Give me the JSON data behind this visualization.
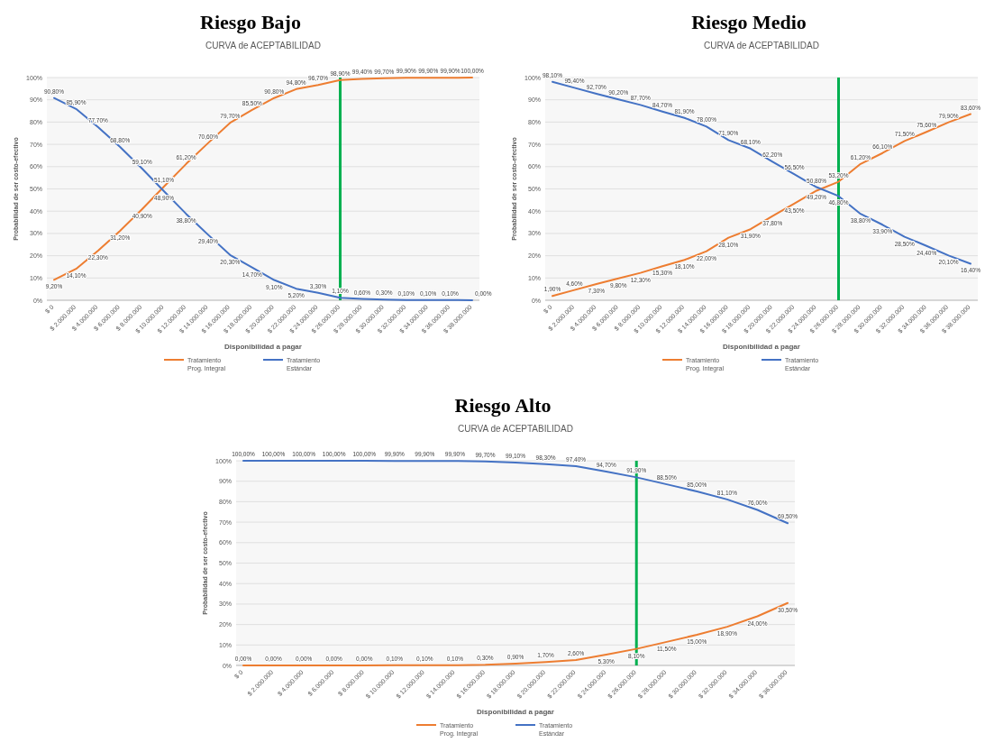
{
  "chart_data": [
    {
      "type": "line",
      "title": "Riesgo Bajo",
      "subtitle": "CURVA de ACEPTABILIDAD",
      "xlabel": "Disponibilidad a pagar",
      "ylabel": "Probabilidad de ser costo-efectivo",
      "categories": [
        "$ 0",
        "$ 2.000.000",
        "$ 4.000.000",
        "$ 6.000.000",
        "$ 8.000.000",
        "$ 10.000.000",
        "$ 12.000.000",
        "$ 14.000.000",
        "$ 16.000.000",
        "$ 18.000.000",
        "$ 20.000.000",
        "$ 22.000.000",
        "$ 24.000.000",
        "$ 26.000.000",
        "$ 28.000.000",
        "$ 30.000.000",
        "$ 32.000.000",
        "$ 34.000.000",
        "$ 36.000.000",
        "$ 38.000.000"
      ],
      "ylim": [
        0,
        100
      ],
      "yticks": [
        {
          "value": 0,
          "label": "0%"
        },
        {
          "value": 10,
          "label": "10%"
        },
        {
          "value": 20,
          "label": "20%"
        },
        {
          "value": 30,
          "label": "30%"
        },
        {
          "value": 40,
          "label": "40%"
        },
        {
          "value": 50,
          "label": "50%"
        },
        {
          "value": 60,
          "label": "60%"
        },
        {
          "value": 70,
          "label": "70%"
        },
        {
          "value": 80,
          "label": "80%"
        },
        {
          "value": 90,
          "label": "90%"
        },
        {
          "value": 100,
          "label": "100%"
        }
      ],
      "grid": "y",
      "legend": "bottom",
      "marker": "none",
      "ref_lines": [
        {
          "axis": "x",
          "value": "$ 26.000.000",
          "color": "#00b050"
        }
      ],
      "series": [
        {
          "name": "Tratamiento Prog. Integral",
          "color": "#ed7d31",
          "values": [
            9.2,
            14.1,
            22.3,
            31.2,
            40.9,
            51.1,
            61.2,
            70.6,
            79.7,
            85.5,
            90.8,
            94.8,
            96.7,
            98.9,
            99.4,
            99.7,
            99.9,
            99.9,
            99.9,
            100
          ],
          "value_labels": [
            "9,20%",
            "14,10%",
            "22,30%",
            "31,20%",
            "40,90%",
            "51,10%",
            "61,20%",
            "70,60%",
            "79,70%",
            "85,50%",
            "90,80%",
            "94,80%",
            "96,70%",
            "98,90%",
            "99,40%",
            "99,70%",
            "99,90%",
            "99,90%",
            "99,90%",
            "100,00%"
          ]
        },
        {
          "name": "Tratamiento Estándar",
          "color": "#4472c4",
          "values": [
            90.8,
            85.9,
            77.7,
            68.8,
            59.1,
            48.9,
            38.8,
            29.4,
            20.3,
            14.7,
            9.1,
            5.2,
            3.3,
            1.1,
            0.6,
            0.3,
            0.1,
            0.1,
            0.1,
            0
          ],
          "value_labels": [
            "90,80%",
            "85,90%",
            "77,70%",
            "68,80%",
            "59,10%",
            "48,90%",
            "38,80%",
            "29,40%",
            "20,30%",
            "14,70%",
            "9,10%",
            "5,20%",
            "3,30%",
            "1,10%",
            "0,60%",
            "0,30%",
            "0,10%",
            "0,10%",
            "0,10%",
            "0,00%"
          ]
        }
      ]
    },
    {
      "type": "line",
      "title": "Riesgo Medio",
      "subtitle": "CURVA de ACEPTABILIDAD",
      "xlabel": "Disponibilidad a pagar",
      "ylabel": "Probabilidad de ser costo-efectivo",
      "categories": [
        "$ 0",
        "$ 2.000.000",
        "$ 4.000.000",
        "$ 6.000.000",
        "$ 8.000.000",
        "$ 10.000.000",
        "$ 12.000.000",
        "$ 14.000.000",
        "$ 16.000.000",
        "$ 18.000.000",
        "$ 20.000.000",
        "$ 22.000.000",
        "$ 24.000.000",
        "$ 26.000.000",
        "$ 28.000.000",
        "$ 30.000.000",
        "$ 32.000.000",
        "$ 34.000.000",
        "$ 36.000.000",
        "$ 38.000.000"
      ],
      "ylim": [
        0,
        100
      ],
      "yticks": [
        {
          "value": 0,
          "label": "0%"
        },
        {
          "value": 10,
          "label": "10%"
        },
        {
          "value": 20,
          "label": "20%"
        },
        {
          "value": 30,
          "label": "30%"
        },
        {
          "value": 40,
          "label": "40%"
        },
        {
          "value": 50,
          "label": "50%"
        },
        {
          "value": 60,
          "label": "60%"
        },
        {
          "value": 70,
          "label": "70%"
        },
        {
          "value": 80,
          "label": "80%"
        },
        {
          "value": 90,
          "label": "90%"
        },
        {
          "value": 100,
          "label": "100%"
        }
      ],
      "grid": "y",
      "legend": "bottom",
      "marker": "none",
      "ref_lines": [
        {
          "axis": "x",
          "value": "$ 26.000.000",
          "color": "#00b050"
        }
      ],
      "series": [
        {
          "name": "Tratamiento Prog. Integral",
          "color": "#ed7d31",
          "values": [
            1.9,
            4.6,
            7.3,
            9.8,
            12.3,
            15.3,
            18.1,
            22,
            28.1,
            31.9,
            37.8,
            43.5,
            49.2,
            53.2,
            61.2,
            66.1,
            71.5,
            75.6,
            79.9,
            83.6
          ],
          "value_labels": [
            "1,90%",
            "4,60%",
            "7,30%",
            "9,80%",
            "12,30%",
            "15,30%",
            "18,10%",
            "22,00%",
            "28,10%",
            "31,90%",
            "37,80%",
            "43,50%",
            "49,20%",
            "53,20%",
            "61,20%",
            "66,10%",
            "71,50%",
            "75,60%",
            "79,90%",
            "83,60%"
          ]
        },
        {
          "name": "Tratamiento Estándar",
          "color": "#4472c4",
          "values": [
            98.1,
            95.4,
            92.7,
            90.2,
            87.7,
            84.7,
            81.9,
            78,
            71.9,
            68.1,
            62.2,
            56.5,
            50.8,
            46.8,
            38.8,
            33.9,
            28.5,
            24.4,
            20.1,
            16.4
          ],
          "value_labels": [
            "98,10%",
            "95,40%",
            "92,70%",
            "90,20%",
            "87,70%",
            "84,70%",
            "81,90%",
            "78,00%",
            "71,90%",
            "68,10%",
            "62,20%",
            "56,50%",
            "50,80%",
            "46,80%",
            "38,80%",
            "33,90%",
            "28,50%",
            "24,40%",
            "20,10%",
            "16,40%"
          ]
        }
      ]
    },
    {
      "type": "line",
      "title": "Riesgo Alto",
      "subtitle": "CURVA de ACEPTABILIDAD",
      "xlabel": "Disponibilidad a pagar",
      "ylabel": "Probabilidad de ser costo-efectivo",
      "categories": [
        "$ 0",
        "$ 2.000.000",
        "$ 4.000.000",
        "$ 6.000.000",
        "$ 8.000.000",
        "$ 10.000.000",
        "$ 12.000.000",
        "$ 14.000.000",
        "$ 16.000.000",
        "$ 18.000.000",
        "$ 20.000.000",
        "$ 22.000.000",
        "$ 24.000.000",
        "$ 26.000.000",
        "$ 28.000.000",
        "$ 30.000.000",
        "$ 32.000.000",
        "$ 34.000.000",
        "$ 36.000.000"
      ],
      "ylim": [
        0,
        100
      ],
      "yticks": [
        {
          "value": 0,
          "label": "0%"
        },
        {
          "value": 10,
          "label": "10%"
        },
        {
          "value": 20,
          "label": "20%"
        },
        {
          "value": 30,
          "label": "30%"
        },
        {
          "value": 40,
          "label": "40%"
        },
        {
          "value": 50,
          "label": "50%"
        },
        {
          "value": 60,
          "label": "60%"
        },
        {
          "value": 70,
          "label": "70%"
        },
        {
          "value": 80,
          "label": "80%"
        },
        {
          "value": 90,
          "label": "90%"
        },
        {
          "value": 100,
          "label": "100%"
        }
      ],
      "grid": "y",
      "legend": "bottom",
      "marker": "none",
      "ref_lines": [
        {
          "axis": "x",
          "value": "$ 26.000.000",
          "color": "#00b050"
        }
      ],
      "series": [
        {
          "name": "Tratamiento Prog. Integral",
          "color": "#ed7d31",
          "values": [
            0,
            0,
            0,
            0,
            0,
            0.1,
            0.1,
            0.1,
            0.3,
            0.9,
            1.7,
            2.6,
            5.3,
            8.1,
            11.5,
            15,
            18.9,
            24,
            30.5
          ],
          "value_labels": [
            "0,00%",
            "0,00%",
            "0,00%",
            "0,00%",
            "0,00%",
            "0,10%",
            "0,10%",
            "0,10%",
            "0,30%",
            "0,90%",
            "1,70%",
            "2,60%",
            "5,30%",
            "8,10%",
            "11,50%",
            "15,00%",
            "18,90%",
            "24,00%",
            "30,50%"
          ]
        },
        {
          "name": "Tratamiento Estándar",
          "color": "#4472c4",
          "values": [
            100,
            100,
            100,
            100,
            100,
            99.9,
            99.9,
            99.9,
            99.7,
            99.1,
            98.3,
            97.4,
            94.7,
            91.9,
            88.5,
            85,
            81.1,
            76,
            69.5
          ],
          "value_labels": [
            "100,00%",
            "100,00%",
            "100,00%",
            "100,00%",
            "100,00%",
            "99,90%",
            "99,90%",
            "99,90%",
            "99,70%",
            "99,10%",
            "98,30%",
            "97,40%",
            "94,70%",
            "91,90%",
            "88,50%",
            "85,00%",
            "81,10%",
            "76,00%",
            "69,50%"
          ]
        }
      ]
    }
  ]
}
